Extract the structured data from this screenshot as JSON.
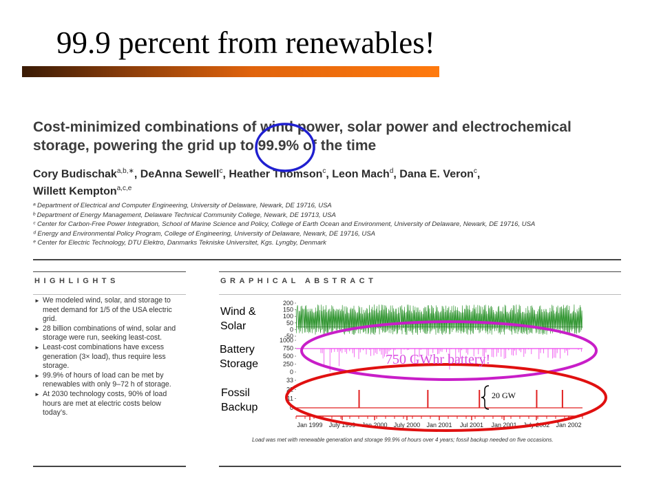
{
  "slide": {
    "title": "99.9 percent from renewables!",
    "accent_colors": {
      "bar_start": "#3a1b06",
      "bar_end": "#ff7a0e",
      "blue_circle": "#2020d0",
      "magenta_ellipse": "#c81ec8",
      "red_ellipse": "#e01010"
    }
  },
  "paper": {
    "title_line1": "Cost-minimized combinations of wind power, solar power and electrochemical",
    "title_line2": "storage, powering the grid up to 99.9% of the time",
    "authors": [
      {
        "name": "Cory Budischak",
        "sup": "a,b,∗",
        "sep": ", "
      },
      {
        "name": "DeAnna Sewell",
        "sup": "c",
        "sep": ", "
      },
      {
        "name": "Heather Thomson",
        "sup": "c",
        "sep": ", "
      },
      {
        "name": "Leon Mach",
        "sup": "d",
        "sep": ", "
      },
      {
        "name": "Dana E. Veron",
        "sup": "c",
        "sep": ","
      },
      {
        "name": "Willett Kempton",
        "sup": "a,c,e",
        "sep": ""
      }
    ],
    "affiliations": [
      "ᵃ Department of Electrical and Computer Engineering, University of Delaware, Newark, DE 19716, USA",
      "ᵇ Department of Energy Management, Delaware Technical Community College, Newark, DE 19713, USA",
      "ᶜ Center for Carbon-Free Power Integration, School of Marine Science and Policy, College of Earth Ocean and Environment, University of Delaware, Newark, DE 19716, USA",
      "ᵈ Energy and Environmental Policy Program, College of Engineering, University of Delaware, Newark, DE 19716, USA",
      "ᵉ Center for Electric Technology, DTU Elektro, Danmarks Tekniske Universitet, Kgs. Lyngby, Denmark"
    ],
    "highlights_heading": "HIGHLIGHTS",
    "highlights": [
      "We modeled wind, solar, and storage to meet demand for 1/5 of the USA electric grid.",
      "28 billion combinations of wind, solar and storage were run, seeking least-cost.",
      "Least-cost combinations have excess generation (3× load), thus require less storage.",
      "99.9% of hours of load can be met by renewables with only 9–72 h of storage.",
      "At 2030 technology costs, 90% of load hours are met at electric costs below today’s."
    ],
    "abstract_heading": "GRAPHICAL ABSTRACT",
    "caption": "Load was met with renewable generation and storage 99.9% of hours over 4 years; fossil backup needed on five occasions."
  },
  "chart_data": {
    "type": "line",
    "x_ticks": [
      "Jan 1999",
      "July 1999",
      "Jan 2000",
      "July 2000",
      "Jan 2001",
      "Jul 2001",
      "Jan 2001",
      "July 2002",
      "Jan 2002"
    ],
    "panels": [
      {
        "label": "Wind & Solar",
        "yticks": [
          "200",
          "150",
          "100",
          "50",
          "0",
          "-50"
        ],
        "color": "#1e8c1e"
      },
      {
        "label": "Battery Storage",
        "yticks": [
          "1000",
          "750",
          "500",
          "250",
          "0"
        ],
        "color": "#ee44ee"
      },
      {
        "label": "Fossil Backup",
        "yticks": [
          "33",
          "22",
          "11",
          "0"
        ],
        "color": "#e02020",
        "spike_positions": [
          0.22,
          0.46,
          0.64,
          0.84,
          0.93
        ]
      }
    ]
  },
  "annotations": {
    "battery": "750 GWhr battery!",
    "gw": "20 GW"
  }
}
